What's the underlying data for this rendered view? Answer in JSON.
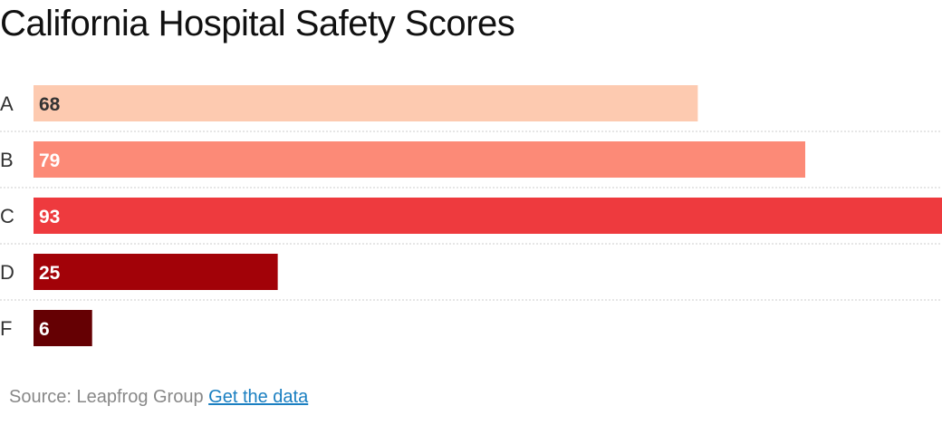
{
  "title": "California Hospital Safety Scores",
  "chart_data": {
    "type": "bar",
    "orientation": "horizontal",
    "title": "California Hospital Safety Scores",
    "categories": [
      "A",
      "B",
      "C",
      "D",
      "F"
    ],
    "values": [
      68,
      79,
      93,
      25,
      6
    ],
    "colors": [
      "#fdcab0",
      "#fc8a77",
      "#ee3a3e",
      "#a20208",
      "#650003"
    ],
    "label_colors": [
      "#333333",
      "#ffffff",
      "#ffffff",
      "#ffffff",
      "#ffffff"
    ],
    "xlim": [
      0,
      93
    ],
    "grid": false,
    "legend": "none"
  },
  "source": {
    "prefix": "Source: Leapfrog Group",
    "link_label": "Get the data"
  }
}
